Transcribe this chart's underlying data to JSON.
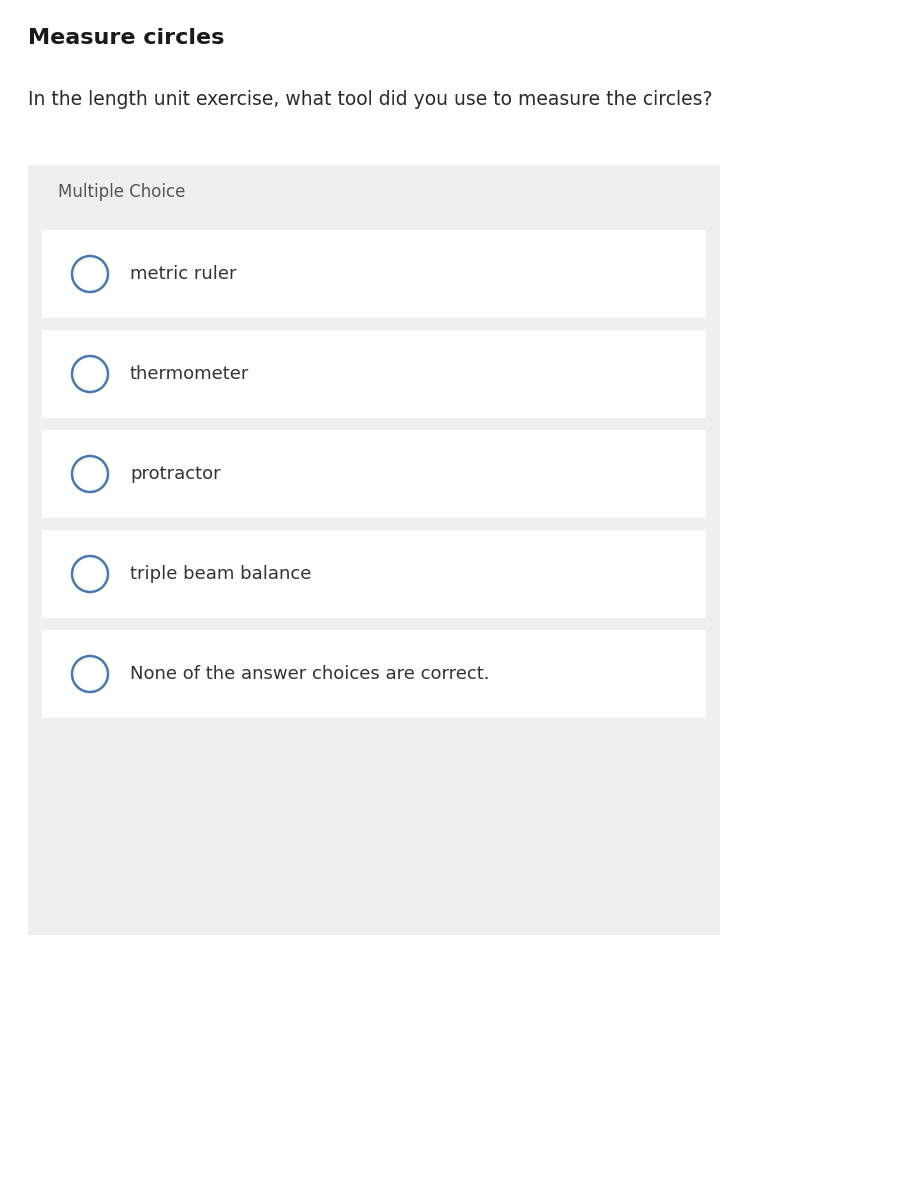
{
  "title": "Measure circles",
  "question": "In the length unit exercise, what tool did you use to measure the circles?",
  "section_label": "Multiple Choice",
  "choices": [
    "metric ruler",
    "thermometer",
    "protractor",
    "triple beam balance",
    "None of the answer choices are correct."
  ],
  "bg_color": "#efefef",
  "card_color": "#ffffff",
  "circle_edge_color": "#4a78b0",
  "title_color": "#1a1a1a",
  "question_color": "#2a2a2a",
  "label_color": "#555555",
  "choice_color": "#333333",
  "fig_bg": "#ffffff",
  "title_fontsize": 16,
  "question_fontsize": 13.5,
  "label_fontsize": 12,
  "choice_fontsize": 13
}
